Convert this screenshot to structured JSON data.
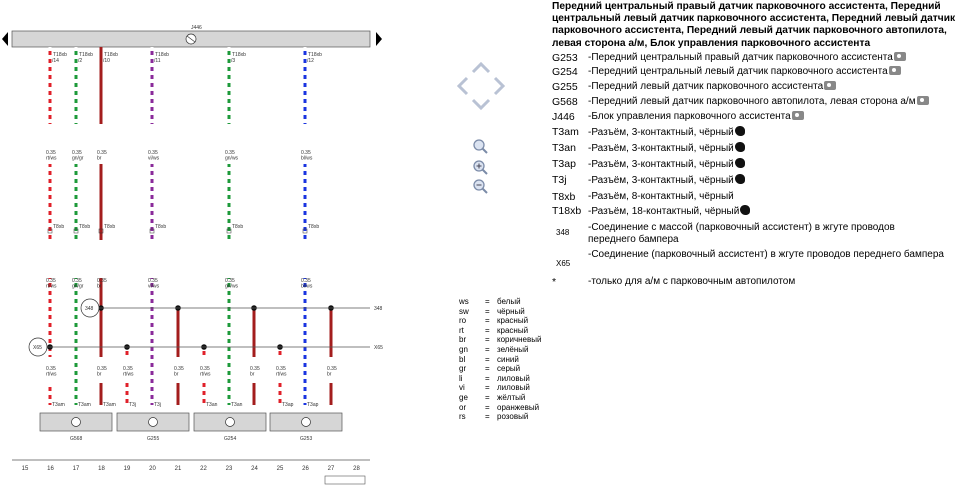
{
  "diagram": {
    "control_unit": "J446",
    "pin_labels": [
      "/14",
      "/2",
      "/10",
      "/11",
      "/3",
      "/12"
    ],
    "connector_label": "T18xb",
    "wire_labels": [
      "0.35\nrt/ws",
      "0.35\ngn/gr",
      "0.35\nbr",
      "0.35\nvi/ws",
      "0.35\ngn/ws",
      "0.35\nbl/ws"
    ],
    "ground_label": "348",
    "splice_label": "X65",
    "bottom_wire_labels": [
      "0.35\nrt/ws",
      "0.35\nbr",
      "0.35\nrt/ws",
      "0.35\nbr",
      "0.35\nrt/ws",
      "0.35\nbr",
      "0.35\nrt/ws",
      "0.35\nbr"
    ],
    "sensors": [
      "G568",
      "G255",
      "G254",
      "G253"
    ],
    "mid_connectors": [
      "T8xb",
      "T8xb",
      "T8xb",
      "T8xb",
      "T8xb",
      "T8xb"
    ],
    "bottom_connectors": [
      "T3am",
      "T3am",
      "T3am",
      "T3j",
      "T3j",
      "T3an",
      "T3an",
      "T3ap",
      "T3ap"
    ],
    "ruler": [
      "15",
      "16",
      "17",
      "18",
      "19",
      "20",
      "21",
      "22",
      "23",
      "24",
      "25",
      "26",
      "27",
      "28"
    ],
    "right_marks": [
      "348",
      "X65"
    ]
  },
  "title": "Передний центральный правый датчик парковочного ассистента, Передний центральный левый датчик парковочного ассистента, Передний левый датчик парковочного ассистента, Передний левый датчик парковочного автопилота, левая сторона а/м, Блок управления парковочного ассистента",
  "components": [
    {
      "code": "G253",
      "desc": "-Передний центральный правый датчик парковочного ассистента",
      "icon": "camera-icon"
    },
    {
      "code": "G254",
      "desc": "-Передний центральный левый датчик парковочного ассистента",
      "icon": "camera-icon"
    },
    {
      "code": "G255",
      "desc": "-Передний левый датчик парковочного ассистента",
      "icon": "camera-icon"
    },
    {
      "code": "G568",
      "desc": "-Передний левый датчик парковочного автопилота, левая сторона а/м",
      "icon": "camera-icon"
    },
    {
      "code": "J446",
      "desc": "-Блок управления парковочного ассистента",
      "icon": "camera-icon"
    },
    {
      "code": "T3am",
      "desc": "-Разъём, 3-контактный, чёрный",
      "icon": "plug-icon"
    },
    {
      "code": "T3an",
      "desc": "-Разъём, 3-контактный, чёрный",
      "icon": "plug-icon"
    },
    {
      "code": "T3ap",
      "desc": "-Разъём, 3-контактный, чёрный",
      "icon": "plug-icon"
    },
    {
      "code": "T3j",
      "desc": "-Разъём, 3-контактный, чёрный",
      "icon": "plug-icon"
    },
    {
      "code": "T8xb",
      "desc": "-Разъём, 8-контактный, чёрный",
      "icon": ""
    },
    {
      "code": "T18xb",
      "desc": "-Разъём, 18-контактный, чёрный",
      "icon": "plug-icon"
    },
    {
      "code": "348",
      "desc": "-Соединение с массой (парковочный ассистент) в жгуте проводов переднего бампера",
      "icon": ""
    },
    {
      "code": "X65",
      "desc": "-Соединение (парковочный ассистент) в жгуте проводов переднего бампера",
      "icon": ""
    },
    {
      "code": "*",
      "desc": "-только для а/м с парковочным автопилотом",
      "icon": ""
    }
  ],
  "color_codes": [
    {
      "abbr": "ws",
      "name": "белый"
    },
    {
      "abbr": "sw",
      "name": "чёрный"
    },
    {
      "abbr": "ro",
      "name": "красный"
    },
    {
      "abbr": "rt",
      "name": "красный"
    },
    {
      "abbr": "br",
      "name": "коричневый"
    },
    {
      "abbr": "gn",
      "name": "зелёный"
    },
    {
      "abbr": "bl",
      "name": "синий"
    },
    {
      "abbr": "gr",
      "name": "серый"
    },
    {
      "abbr": "li",
      "name": "лиловый"
    },
    {
      "abbr": "vi",
      "name": "лиловый"
    },
    {
      "abbr": "ge",
      "name": "жёлтый"
    },
    {
      "abbr": "or",
      "name": "оранжевый"
    },
    {
      "abbr": "rs",
      "name": "розовый"
    }
  ],
  "color_equals": "=",
  "wire_colors": {
    "red": "#e0202a",
    "green": "#1d9a3a",
    "brown": "#a31d1d",
    "violet": "#8a2a9a",
    "blue": "#1a34e0",
    "white": "#ffffff"
  },
  "nav_icons": [
    "arrow-up-icon",
    "arrow-left-icon",
    "arrow-right-icon",
    "arrow-down-icon",
    "zoom-icon",
    "zoom-in-icon",
    "zoom-out-icon"
  ]
}
